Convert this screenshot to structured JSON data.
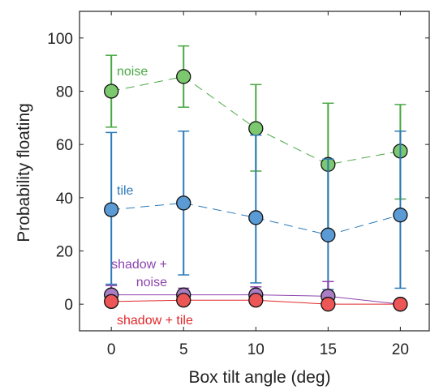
{
  "chart_data": {
    "type": "line",
    "xlabel": "Box tilt angle (deg)",
    "ylabel": "Probability floating",
    "xlim": [
      -2.2,
      22
    ],
    "ylim": [
      -10,
      110
    ],
    "x_ticks": [
      0,
      5,
      10,
      15,
      20
    ],
    "y_ticks": [
      0,
      20,
      40,
      60,
      80,
      100
    ],
    "grid": false,
    "x": [
      0,
      5,
      10,
      15,
      20
    ],
    "series": [
      {
        "name": "noise",
        "label_lines": [
          "noise"
        ],
        "color": "#4aa844",
        "marker_fill": "#7cc86e",
        "line_style": "dashed",
        "values": [
          80,
          85.5,
          66,
          52.5,
          57.5
        ],
        "err_low": [
          66.5,
          74,
          50,
          27.5,
          39.5
        ],
        "err_high": [
          93.5,
          97,
          82.5,
          75.5,
          75
        ]
      },
      {
        "name": "tile",
        "label_lines": [
          "tile"
        ],
        "color": "#2d7ab8",
        "marker_fill": "#5b9bd5",
        "line_style": "dashed",
        "values": [
          35.5,
          38,
          32.5,
          26,
          33.5
        ],
        "err_low": [
          7.5,
          11,
          8,
          5.5,
          6
        ],
        "err_high": [
          64.5,
          65,
          63.5,
          54.5,
          65
        ]
      },
      {
        "name": "shadow + noise",
        "label_lines": [
          "shadow +",
          "noise"
        ],
        "color": "#8e44ad",
        "marker_fill": "#a97ec4",
        "line_style": "solid",
        "values": [
          3.5,
          3.5,
          3.5,
          3,
          0
        ],
        "err_low": [
          0,
          0,
          0,
          0,
          0
        ],
        "err_high": [
          7,
          6,
          6.5,
          8.5,
          0
        ]
      },
      {
        "name": "shadow + tile",
        "label_lines": [
          "shadow + tile"
        ],
        "color": "#e0282a",
        "marker_fill": "#ec5656",
        "line_style": "solid",
        "values": [
          1,
          1.5,
          1.5,
          0,
          0
        ],
        "err_low": [
          0,
          0,
          0,
          0,
          0
        ],
        "err_high": [
          2.5,
          3,
          3,
          0,
          0
        ]
      }
    ]
  }
}
